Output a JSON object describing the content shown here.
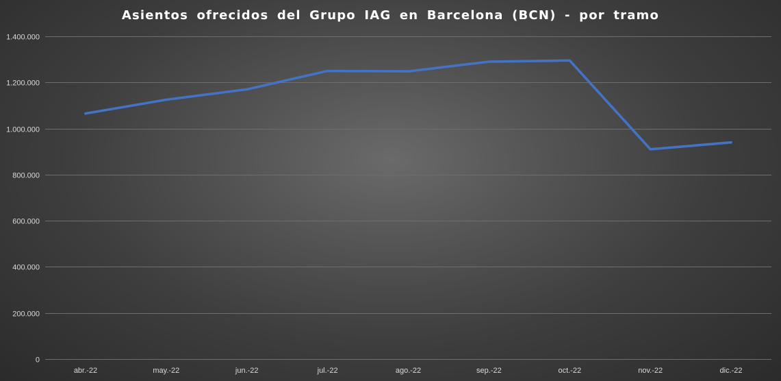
{
  "chart_data": {
    "type": "line",
    "title": "Asientos ofrecidos del Grupo IAG en Barcelona (BCN) - por tramo",
    "xlabel": "",
    "ylabel": "",
    "categories": [
      "abr.-22",
      "may.-22",
      "jun.-22",
      "jul.-22",
      "ago.-22",
      "sep.-22",
      "oct.-22",
      "nov.-22",
      "dic.-22"
    ],
    "series": [
      {
        "values": [
          1065000,
          1125000,
          1170000,
          1250000,
          1248000,
          1290000,
          1295000,
          910000,
          940000
        ],
        "color": "#4472c4"
      }
    ],
    "ylim": [
      0,
      1400000
    ],
    "yticks": [
      0,
      200000,
      400000,
      600000,
      800000,
      1000000,
      1200000,
      1400000
    ],
    "ytick_labels": [
      "0",
      "200.000",
      "400.000",
      "600.000",
      "800.000",
      "1.000.000",
      "1.200.000",
      "1.400.000"
    ],
    "grid": true,
    "legend": "none"
  }
}
